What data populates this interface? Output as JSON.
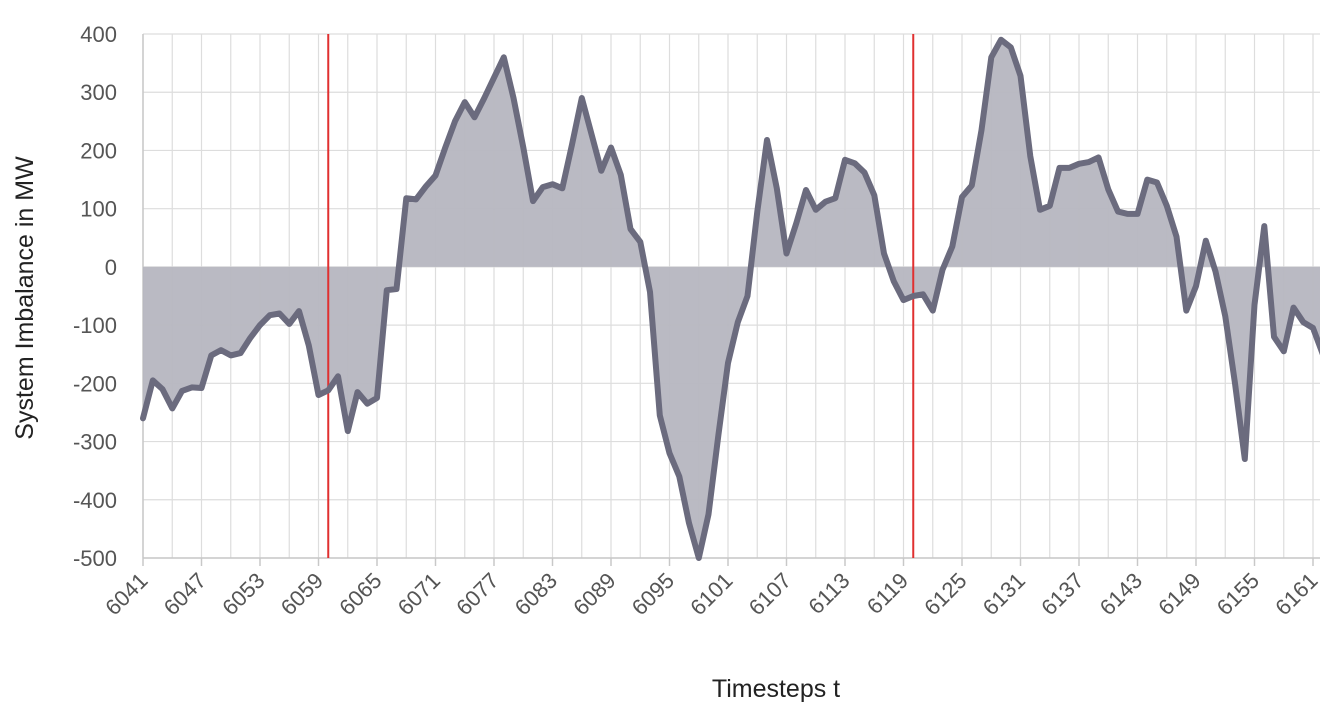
{
  "chart_data": {
    "type": "area",
    "xlabel": "Timesteps t",
    "ylabel": "System Imbalance in MW",
    "ylim": [
      -500,
      400
    ],
    "yticks": [
      400,
      300,
      200,
      100,
      0,
      -100,
      -200,
      -300,
      -400,
      -500
    ],
    "xlim": [
      6041,
      6162
    ],
    "xticks": [
      6041,
      6047,
      6053,
      6059,
      6065,
      6071,
      6077,
      6083,
      6089,
      6095,
      6101,
      6107,
      6113,
      6119,
      6125,
      6131,
      6137,
      6143,
      6149,
      6155,
      6161
    ],
    "grid": true,
    "fill_baseline": 0,
    "vertical_markers": [
      6060,
      6120
    ],
    "colors": {
      "line": "#6b6b7e",
      "fill": "#b6b6c0",
      "marker": "#e03030",
      "grid": "#dddddd"
    },
    "series": [
      {
        "x": [
          6041,
          6042,
          6043,
          6044,
          6045,
          6046,
          6047,
          6048,
          6049,
          6050,
          6051,
          6052,
          6053,
          6054,
          6055,
          6056,
          6057,
          6058,
          6059,
          6060,
          6061,
          6062,
          6063,
          6064,
          6065,
          6066,
          6067,
          6068,
          6069,
          6070,
          6071,
          6072,
          6073,
          6074,
          6075,
          6076,
          6077,
          6078,
          6079,
          6080,
          6081,
          6082,
          6083,
          6084,
          6085,
          6086,
          6087,
          6088,
          6089,
          6090,
          6091,
          6092,
          6093,
          6094,
          6095,
          6096,
          6097,
          6098,
          6099,
          6100,
          6101,
          6102,
          6103,
          6104,
          6105,
          6106,
          6107,
          6108,
          6109,
          6110,
          6111,
          6112,
          6113,
          6114,
          6115,
          6116,
          6117,
          6118,
          6119,
          6120,
          6121,
          6122,
          6123,
          6124,
          6125,
          6126,
          6127,
          6128,
          6129,
          6130,
          6131,
          6132,
          6133,
          6134,
          6135,
          6136,
          6137,
          6138,
          6139,
          6140,
          6141,
          6142,
          6143,
          6144,
          6145,
          6146,
          6147,
          6148,
          6149,
          6150,
          6151,
          6152,
          6153,
          6154,
          6155,
          6156,
          6157,
          6158,
          6159,
          6160,
          6161,
          6162
        ],
        "values": [
          -260,
          -195,
          -210,
          -243,
          -213,
          -207,
          -208,
          -152,
          -143,
          -152,
          -148,
          -122,
          -100,
          -83,
          -80,
          -98,
          -76,
          -135,
          -220,
          -212,
          -188,
          -282,
          -215,
          -235,
          -225,
          -40,
          -38,
          118,
          116,
          138,
          157,
          205,
          250,
          283,
          257,
          290,
          325,
          360,
          290,
          205,
          113,
          137,
          142,
          135,
          210,
          290,
          228,
          165,
          205,
          158,
          65,
          43,
          -43,
          -255,
          -320,
          -360,
          -440,
          -500,
          -425,
          -290,
          -165,
          -95,
          -50,
          95,
          218,
          135,
          23,
          75,
          132,
          98,
          112,
          118,
          184,
          178,
          162,
          123,
          23,
          -25,
          -57,
          -50,
          -47,
          -75,
          -5,
          35,
          120,
          140,
          235,
          360,
          390,
          377,
          328,
          190,
          98,
          105,
          170,
          170,
          177,
          180,
          188,
          133,
          95,
          91,
          91,
          150,
          145,
          105,
          52,
          -75,
          -33,
          45,
          -8,
          -85,
          -200,
          -330,
          -65,
          70,
          -120,
          -145,
          -70,
          -95,
          -105,
          -150
        ]
      }
    ]
  }
}
